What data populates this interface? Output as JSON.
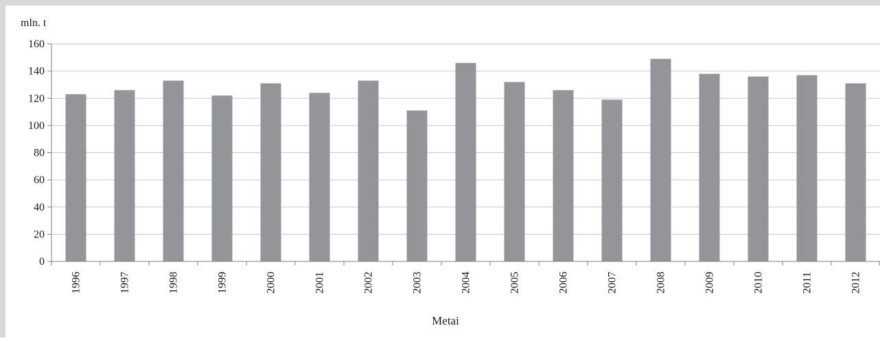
{
  "chart_data": {
    "type": "bar",
    "categories": [
      "1996",
      "1997",
      "1998",
      "1999",
      "2000",
      "2001",
      "2002",
      "2003",
      "2004",
      "2005",
      "2006",
      "2007",
      "2008",
      "2009",
      "2010",
      "2011",
      "2012"
    ],
    "values": [
      123,
      126,
      133,
      122,
      131,
      124,
      133,
      111,
      146,
      132,
      126,
      119,
      149,
      138,
      136,
      137,
      131
    ],
    "title": "",
    "xlabel": "Metai",
    "ylabel": "mln. t",
    "ylim": [
      0,
      160
    ],
    "yticks": [
      0,
      20,
      40,
      60,
      80,
      100,
      120,
      140,
      160
    ],
    "grid": true,
    "bar_color": "#939598",
    "grid_color": "#c8c8c8",
    "frame_color": "#d9d9d9"
  }
}
